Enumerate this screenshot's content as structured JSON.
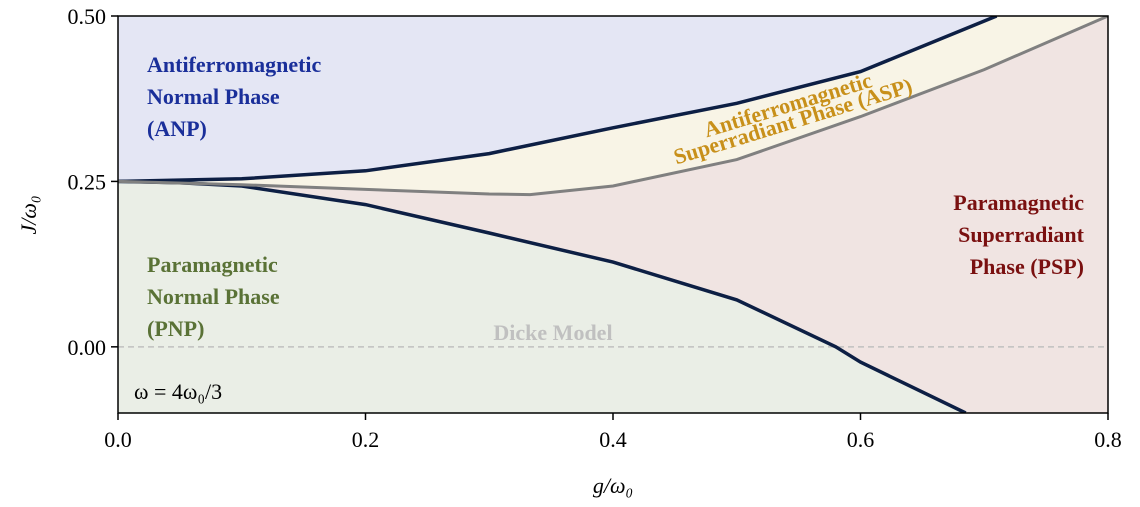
{
  "chart_data": {
    "type": "line",
    "xlabel": "g/ω₀",
    "ylabel": "J/ω₀",
    "xlim": [
      0,
      0.8
    ],
    "ylim": [
      -0.1,
      0.5
    ],
    "xticks": [
      {
        "value": 0,
        "label": "0.0"
      },
      0.2,
      0.4,
      0.6,
      0.8
    ],
    "yticks": [
      {
        "value": 0,
        "label": "0.00"
      },
      {
        "value": 0.25,
        "label": "0.25"
      },
      {
        "value": 0.5,
        "label": "0.50"
      }
    ],
    "series": [
      {
        "color": "#0d1f44",
        "x": [
          0,
          0.1,
          0.2,
          0.3,
          0.4,
          0.5,
          0.6,
          0.71
        ],
        "values": [
          0.25,
          0.254,
          0.266,
          0.292,
          0.331,
          0.368,
          0.416,
          0.5
        ]
      },
      {
        "color": "#0d1f44",
        "x": [
          0,
          0.05,
          0.1,
          0.2,
          0.3,
          0.4,
          0.5,
          0.58,
          0.6,
          0.685
        ],
        "values": [
          0.25,
          0.248,
          0.243,
          0.215,
          0.172,
          0.128,
          0.071,
          0,
          -0.023,
          -0.1
        ]
      },
      {
        "color": "#808080",
        "x": [
          0,
          0.1,
          0.2,
          0.3,
          0.333,
          0.4,
          0.5,
          0.6,
          0.7,
          0.8
        ],
        "values": [
          0.25,
          0.245,
          0.238,
          0.231,
          0.23,
          0.243,
          0.283,
          0.348,
          0.419,
          0.5
        ]
      }
    ],
    "region_colors": {
      "anp": "#e4e6f4",
      "asp": "#f8f4e6",
      "psp": "#f0e4e2",
      "pnp": "#eaeee6"
    },
    "annotations": [
      {
        "text": [
          "Antiferromagnetic",
          "Normal Phase",
          "(ANP)"
        ],
        "color": "#1a2f9a"
      },
      {
        "text": [
          "Paramagnetic",
          "Normal Phase",
          "(PNP)"
        ],
        "color": "#5a7236"
      },
      {
        "text": [
          "Paramagnetic",
          "Superradiant",
          "Phase (PSP)"
        ],
        "color": "#7a1010"
      },
      {
        "text": [
          "Antiferromagnetic",
          "Superradiant Phase (ASP)"
        ],
        "color": "#c8901a"
      },
      {
        "text": [
          "ω = 4ω₀/3"
        ],
        "color": "#000000"
      }
    ],
    "dicke_line": {
      "label": "Dicke Model",
      "y": 0,
      "color": "#c0c0c0"
    }
  }
}
